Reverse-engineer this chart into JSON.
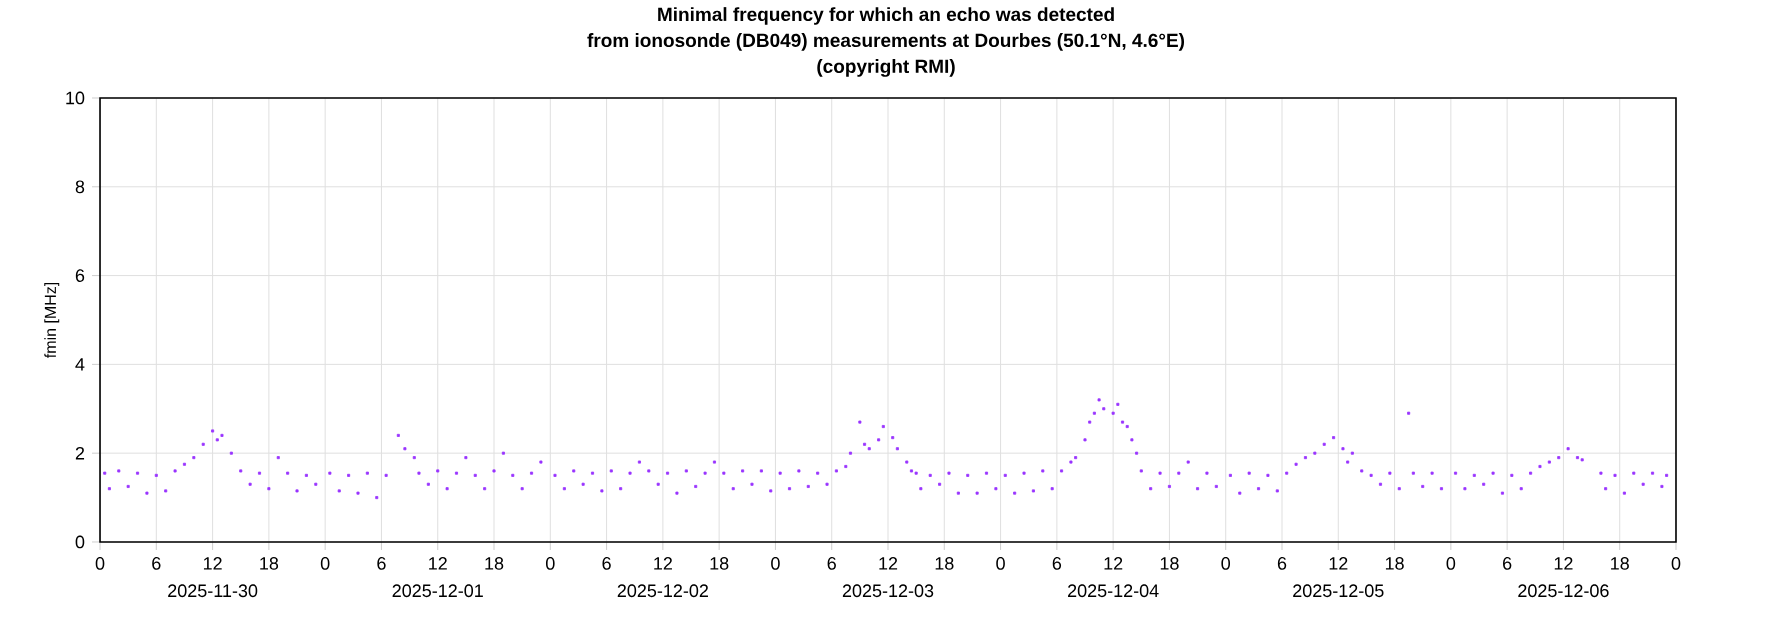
{
  "chart_data": {
    "type": "scatter",
    "title": "Minimal frequency for which an echo was detected",
    "subtitle": "from ionosonde (DB049) measurements at Dourbes (50.1°N, 4.6°E)",
    "annotations": [
      "(copyright RMI)",
      "2025-11-30",
      "2025-12-01",
      "2025-12-02",
      "2025-12-03",
      "2025-12-04",
      "2025-12-05",
      "2025-12-06"
    ],
    "ylabel": "fmin [MHz]",
    "xlim": [
      "2025-11-30T00:00",
      "2025-12-07T00:00"
    ],
    "ylim": [
      0,
      10
    ],
    "yticks": [
      0,
      2,
      4,
      6,
      8,
      10
    ],
    "xticks": [
      {
        "value": "2025-11-30T00:00",
        "label": "0"
      },
      {
        "value": "2025-11-30T06:00",
        "label": "6"
      },
      {
        "value": "2025-11-30T12:00",
        "label": "12"
      },
      {
        "value": "2025-11-30T18:00",
        "label": "18"
      },
      {
        "value": "2025-12-01T00:00",
        "label": "0"
      },
      {
        "value": "2025-12-01T06:00",
        "label": "6"
      },
      {
        "value": "2025-12-01T12:00",
        "label": "12"
      },
      {
        "value": "2025-12-01T18:00",
        "label": "18"
      },
      {
        "value": "2025-12-02T00:00",
        "label": "0"
      },
      {
        "value": "2025-12-02T06:00",
        "label": "6"
      },
      {
        "value": "2025-12-02T12:00",
        "label": "12"
      },
      {
        "value": "2025-12-02T18:00",
        "label": "18"
      },
      {
        "value": "2025-12-03T00:00",
        "label": "0"
      },
      {
        "value": "2025-12-03T06:00",
        "label": "6"
      },
      {
        "value": "2025-12-03T12:00",
        "label": "12"
      },
      {
        "value": "2025-12-03T18:00",
        "label": "18"
      },
      {
        "value": "2025-12-04T00:00",
        "label": "0"
      },
      {
        "value": "2025-12-04T06:00",
        "label": "6"
      },
      {
        "value": "2025-12-04T12:00",
        "label": "12"
      },
      {
        "value": "2025-12-04T18:00",
        "label": "18"
      },
      {
        "value": "2025-12-05T00:00",
        "label": "0"
      },
      {
        "value": "2025-12-05T06:00",
        "label": "6"
      },
      {
        "value": "2025-12-05T12:00",
        "label": "12"
      },
      {
        "value": "2025-12-05T18:00",
        "label": "18"
      },
      {
        "value": "2025-12-06T00:00",
        "label": "0"
      },
      {
        "value": "2025-12-06T06:00",
        "label": "6"
      },
      {
        "value": "2025-12-06T12:00",
        "label": "12"
      },
      {
        "value": "2025-12-06T18:00",
        "label": "18"
      },
      {
        "value": "2025-12-07T00:00",
        "label": "0"
      }
    ],
    "grid": true,
    "marker": "square",
    "series": [
      {
        "color": "#9933ff",
        "x": [
          "2025-11-30T00:30",
          "2025-11-30T01:00",
          "2025-11-30T02:00",
          "2025-11-30T03:00",
          "2025-11-30T04:00",
          "2025-11-30T05:00",
          "2025-11-30T06:00",
          "2025-11-30T07:00",
          "2025-11-30T08:00",
          "2025-11-30T09:00",
          "2025-11-30T10:00",
          "2025-11-30T11:00",
          "2025-11-30T12:00",
          "2025-11-30T12:30",
          "2025-11-30T13:00",
          "2025-11-30T14:00",
          "2025-11-30T15:00",
          "2025-11-30T16:00",
          "2025-11-30T17:00",
          "2025-11-30T18:00",
          "2025-11-30T19:00",
          "2025-11-30T20:00",
          "2025-11-30T21:00",
          "2025-11-30T22:00",
          "2025-11-30T23:00",
          "2025-12-01T00:30",
          "2025-12-01T01:30",
          "2025-12-01T02:30",
          "2025-12-01T03:30",
          "2025-12-01T04:30",
          "2025-12-01T05:30",
          "2025-12-01T06:30",
          "2025-12-01T07:48",
          "2025-12-01T08:30",
          "2025-12-01T09:30",
          "2025-12-01T10:00",
          "2025-12-01T11:00",
          "2025-12-01T12:00",
          "2025-12-01T13:00",
          "2025-12-01T14:00",
          "2025-12-01T15:00",
          "2025-12-01T16:00",
          "2025-12-01T17:00",
          "2025-12-01T18:00",
          "2025-12-01T19:00",
          "2025-12-01T20:00",
          "2025-12-01T21:00",
          "2025-12-01T22:00",
          "2025-12-01T23:00",
          "2025-12-02T00:30",
          "2025-12-02T01:30",
          "2025-12-02T02:30",
          "2025-12-02T03:30",
          "2025-12-02T04:30",
          "2025-12-02T05:30",
          "2025-12-02T06:30",
          "2025-12-02T07:30",
          "2025-12-02T08:30",
          "2025-12-02T09:30",
          "2025-12-02T10:30",
          "2025-12-02T11:30",
          "2025-12-02T12:30",
          "2025-12-02T13:30",
          "2025-12-02T14:30",
          "2025-12-02T15:30",
          "2025-12-02T16:30",
          "2025-12-02T17:30",
          "2025-12-02T18:30",
          "2025-12-02T19:30",
          "2025-12-02T20:30",
          "2025-12-02T21:30",
          "2025-12-02T22:30",
          "2025-12-02T23:30",
          "2025-12-03T00:30",
          "2025-12-03T01:30",
          "2025-12-03T02:30",
          "2025-12-03T03:30",
          "2025-12-03T04:30",
          "2025-12-03T05:30",
          "2025-12-03T06:30",
          "2025-12-03T07:30",
          "2025-12-03T08:00",
          "2025-12-03T09:00",
          "2025-12-03T09:30",
          "2025-12-03T10:00",
          "2025-12-03T11:00",
          "2025-12-03T11:30",
          "2025-12-03T12:30",
          "2025-12-03T13:00",
          "2025-12-03T14:00",
          "2025-12-03T14:30",
          "2025-12-03T15:00",
          "2025-12-03T15:30",
          "2025-12-03T16:30",
          "2025-12-03T17:30",
          "2025-12-03T18:30",
          "2025-12-03T19:30",
          "2025-12-03T20:30",
          "2025-12-03T21:30",
          "2025-12-03T22:30",
          "2025-12-03T23:30",
          "2025-12-04T00:30",
          "2025-12-04T01:30",
          "2025-12-04T02:30",
          "2025-12-04T03:30",
          "2025-12-04T04:30",
          "2025-12-04T05:30",
          "2025-12-04T06:30",
          "2025-12-04T07:30",
          "2025-12-04T08:00",
          "2025-12-04T09:00",
          "2025-12-04T09:30",
          "2025-12-04T10:00",
          "2025-12-04T10:30",
          "2025-12-04T11:00",
          "2025-12-04T12:00",
          "2025-12-04T12:30",
          "2025-12-04T13:00",
          "2025-12-04T13:30",
          "2025-12-04T14:00",
          "2025-12-04T14:30",
          "2025-12-04T15:00",
          "2025-12-04T16:00",
          "2025-12-04T17:00",
          "2025-12-04T18:00",
          "2025-12-04T19:00",
          "2025-12-04T20:00",
          "2025-12-04T21:00",
          "2025-12-04T22:00",
          "2025-12-04T23:00",
          "2025-12-05T00:30",
          "2025-12-05T01:30",
          "2025-12-05T02:30",
          "2025-12-05T03:30",
          "2025-12-05T04:30",
          "2025-12-05T05:30",
          "2025-12-05T06:30",
          "2025-12-05T07:30",
          "2025-12-05T08:30",
          "2025-12-05T09:30",
          "2025-12-05T10:30",
          "2025-12-05T11:30",
          "2025-12-05T12:30",
          "2025-12-05T13:00",
          "2025-12-05T13:30",
          "2025-12-05T14:30",
          "2025-12-05T15:30",
          "2025-12-05T16:30",
          "2025-12-05T17:30",
          "2025-12-05T18:30",
          "2025-12-05T19:30",
          "2025-12-05T20:00",
          "2025-12-05T21:00",
          "2025-12-05T22:00",
          "2025-12-05T23:00",
          "2025-12-06T00:30",
          "2025-12-06T01:30",
          "2025-12-06T02:30",
          "2025-12-06T03:30",
          "2025-12-06T04:30",
          "2025-12-06T05:30",
          "2025-12-06T06:30",
          "2025-12-06T07:30",
          "2025-12-06T08:30",
          "2025-12-06T09:30",
          "2025-12-06T10:30",
          "2025-12-06T11:30",
          "2025-12-06T12:30",
          "2025-12-06T13:30",
          "2025-12-06T14:00",
          "2025-12-06T16:00",
          "2025-12-06T16:30",
          "2025-12-06T17:30",
          "2025-12-06T18:30",
          "2025-12-06T19:30",
          "2025-12-06T20:30",
          "2025-12-06T21:30",
          "2025-12-06T22:30",
          "2025-12-06T23:00"
        ],
        "values": [
          1.55,
          1.2,
          1.6,
          1.25,
          1.55,
          1.1,
          1.5,
          1.15,
          1.6,
          1.75,
          1.9,
          2.2,
          2.5,
          2.3,
          2.4,
          2.0,
          1.6,
          1.3,
          1.55,
          1.2,
          1.9,
          1.55,
          1.15,
          1.5,
          1.3,
          1.55,
          1.15,
          1.5,
          1.1,
          1.55,
          1.0,
          1.5,
          2.4,
          2.1,
          1.9,
          1.55,
          1.3,
          1.6,
          1.2,
          1.55,
          1.9,
          1.5,
          1.2,
          1.6,
          2.0,
          1.5,
          1.2,
          1.55,
          1.8,
          1.5,
          1.2,
          1.6,
          1.3,
          1.55,
          1.15,
          1.6,
          1.2,
          1.55,
          1.8,
          1.6,
          1.3,
          1.55,
          1.1,
          1.6,
          1.25,
          1.55,
          1.8,
          1.55,
          1.2,
          1.6,
          1.3,
          1.6,
          1.15,
          1.55,
          1.2,
          1.6,
          1.25,
          1.55,
          1.3,
          1.6,
          1.7,
          2.0,
          2.7,
          2.2,
          2.1,
          2.3,
          2.6,
          2.35,
          2.1,
          1.8,
          1.6,
          1.55,
          1.2,
          1.5,
          1.3,
          1.55,
          1.1,
          1.5,
          1.1,
          1.55,
          1.2,
          1.5,
          1.1,
          1.55,
          1.15,
          1.6,
          1.2,
          1.6,
          1.8,
          1.9,
          2.3,
          2.7,
          2.9,
          3.2,
          3.0,
          2.9,
          3.1,
          2.7,
          2.6,
          2.3,
          2.0,
          1.6,
          1.2,
          1.55,
          1.25,
          1.55,
          1.8,
          1.2,
          1.55,
          1.25,
          1.5,
          1.1,
          1.55,
          1.2,
          1.5,
          1.15,
          1.55,
          1.75,
          1.9,
          2.0,
          2.2,
          2.35,
          2.1,
          1.8,
          2.0,
          1.6,
          1.5,
          1.3,
          1.55,
          1.2,
          2.9,
          1.55,
          1.25,
          1.55,
          1.2,
          1.55,
          1.2,
          1.5,
          1.3,
          1.55,
          1.1,
          1.5,
          1.2,
          1.55,
          1.7,
          1.8,
          1.9,
          2.1,
          1.9,
          1.85,
          1.55,
          1.2,
          1.5,
          1.1,
          1.55,
          1.3,
          1.55,
          1.25,
          1.5
        ]
      }
    ]
  }
}
